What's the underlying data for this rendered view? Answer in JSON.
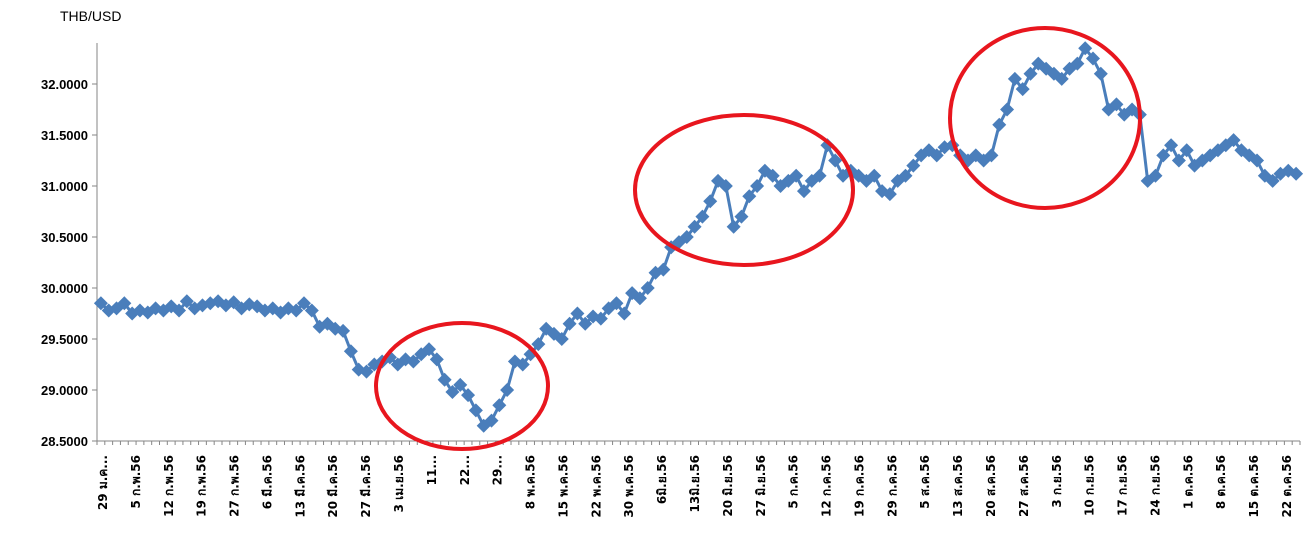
{
  "chart_data": {
    "type": "line",
    "ylabel": "THB/USD",
    "ylim": [
      28.5,
      32.5
    ],
    "yticks": [
      "28.5000",
      "29.0000",
      "29.5000",
      "30.0000",
      "30.5000",
      "31.0000",
      "31.5000",
      "32.0000"
    ],
    "xticks": [
      "29 ม.ค...",
      "5 ก.พ.56",
      "12 ก.พ.56",
      "19 ก.พ.56",
      "27 ก.พ.56",
      "6 มี.ค.56",
      "13 มี.ค.56",
      "20 มี.ค.56",
      "27 มี.ค.56",
      "3 เม.ย.56",
      "11...",
      "22...",
      "29...",
      "8 พ.ค.56",
      "15 พ.ค.56",
      "22 พ.ค.56",
      "30 พ.ค.56",
      "6มิ.ย.56",
      "13มิ.ย.56",
      "20 มิ.ย.56",
      "27 มิ.ย.56",
      "5 ก.ค.56",
      "12 ก.ค.56",
      "19 ก.ค.56",
      "29 ก.ค.56",
      "5 ส.ค.56",
      "13 ส.ค.56",
      "20 ส.ค.56",
      "27 ส.ค.56",
      "3 ก.ย.56",
      "10 ก.ย.56",
      "17 ก.ย.56",
      "24 ก.ย.56",
      "1 ต.ค.56",
      "8 ต.ค.56",
      "15 ต.ค.56",
      "22 ต.ค.56"
    ],
    "series": [
      {
        "color": "#4a7ebb",
        "marker": "diamond",
        "values": [
          29.85,
          29.78,
          29.8,
          29.85,
          29.75,
          29.78,
          29.76,
          29.8,
          29.78,
          29.82,
          29.78,
          29.87,
          29.8,
          29.83,
          29.85,
          29.87,
          29.83,
          29.86,
          29.8,
          29.84,
          29.82,
          29.78,
          29.8,
          29.76,
          29.8,
          29.78,
          29.85,
          29.78,
          29.62,
          29.65,
          29.6,
          29.58,
          29.38,
          29.2,
          29.18,
          29.25,
          29.28,
          29.32,
          29.25,
          29.3,
          29.28,
          29.35,
          29.4,
          29.3,
          29.1,
          28.98,
          29.05,
          28.95,
          28.8,
          28.65,
          28.7,
          28.85,
          29.0,
          29.28,
          29.25,
          29.35,
          29.45,
          29.6,
          29.55,
          29.5,
          29.65,
          29.75,
          29.65,
          29.72,
          29.7,
          29.8,
          29.85,
          29.75,
          29.95,
          29.9,
          30.0,
          30.15,
          30.18,
          30.4,
          30.45,
          30.5,
          30.6,
          30.7,
          30.85,
          31.05,
          31.0,
          30.6,
          30.7,
          30.9,
          31.0,
          31.15,
          31.1,
          31.0,
          31.05,
          31.1,
          30.95,
          31.05,
          31.1,
          31.4,
          31.25,
          31.1,
          31.15,
          31.1,
          31.05,
          31.1,
          30.95,
          30.92,
          31.05,
          31.1,
          31.2,
          31.3,
          31.35,
          31.3,
          31.38,
          31.4,
          31.3,
          31.25,
          31.3,
          31.25,
          31.3,
          31.6,
          31.75,
          32.05,
          31.95,
          32.1,
          32.2,
          32.15,
          32.1,
          32.05,
          32.15,
          32.2,
          32.35,
          32.25,
          32.1,
          31.75,
          31.8,
          31.7,
          31.75,
          31.7,
          31.05,
          31.1,
          31.3,
          31.4,
          31.25,
          31.35,
          31.2,
          31.25,
          31.3,
          31.35,
          31.4,
          31.45,
          31.35,
          31.3,
          31.25,
          31.1,
          31.05,
          31.12,
          31.15,
          31.12
        ]
      }
    ],
    "annotations": [
      {
        "shape": "ellipse",
        "color": "#e8161e"
      },
      {
        "shape": "ellipse",
        "color": "#e8161e"
      },
      {
        "shape": "ellipse",
        "color": "#e8161e"
      }
    ],
    "grid": false,
    "legend": "none"
  }
}
